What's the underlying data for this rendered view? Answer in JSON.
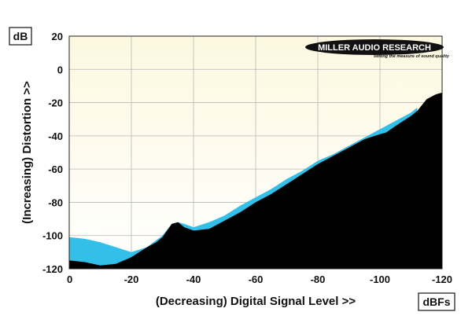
{
  "chart_data": {
    "type": "area",
    "xlabel": "(Decreasing) Digital Signal Level >>",
    "ylabel": "(Increasing) Distortion >>",
    "x_unit": "dBFs",
    "y_unit": "dB",
    "xlim": [
      0,
      -120
    ],
    "ylim": [
      -120,
      20
    ],
    "x_ticks": [
      0,
      -20,
      -40,
      -60,
      -80,
      -100,
      -120
    ],
    "x_tick_labels": [
      "0",
      "-20",
      "-40",
      "-60",
      "-80",
      "-100",
      "-120"
    ],
    "y_ticks": [
      20,
      0,
      -20,
      -40,
      -60,
      -80,
      -100,
      -120
    ],
    "y_tick_labels": [
      "20",
      "0",
      "-20",
      "-40",
      "-60",
      "-80",
      "-100",
      "-120"
    ],
    "grid": true,
    "series": [
      {
        "color": "#33bfe8",
        "x": [
          0,
          -5,
          -10,
          -15,
          -20,
          -25,
          -30,
          -33,
          -35,
          -37,
          -40,
          -45,
          -50,
          -55,
          -60,
          -65,
          -70,
          -75,
          -80,
          -85,
          -90,
          -95,
          -100,
          -105,
          -110,
          -112
        ],
        "values": [
          -101,
          -102,
          -104,
          -107,
          -110,
          -107,
          -100,
          -93,
          -92,
          -93,
          -95,
          -92,
          -88,
          -82,
          -77,
          -72,
          -66,
          -61,
          -55,
          -51,
          -46,
          -41,
          -36,
          -31,
          -26,
          -23
        ]
      },
      {
        "color": "#000000",
        "x": [
          0,
          -5,
          -10,
          -15,
          -20,
          -25,
          -28,
          -30,
          -33,
          -35,
          -37,
          -40,
          -45,
          -50,
          -55,
          -60,
          -65,
          -70,
          -75,
          -80,
          -85,
          -90,
          -95,
          -100,
          -102,
          -105,
          -110,
          -112,
          -115,
          -118,
          -120
        ],
        "values": [
          -115,
          -116,
          -118,
          -117,
          -113,
          -107,
          -104,
          -101,
          -93,
          -92,
          -95,
          -97,
          -96,
          -91,
          -86,
          -80,
          -75,
          -69,
          -63,
          -57,
          -52,
          -47,
          -42,
          -39,
          -38,
          -34,
          -28,
          -25,
          -18,
          -15,
          -14
        ]
      }
    ]
  },
  "logo": {
    "brand": "MILLER AUDIO RESEARCH",
    "tagline": "setting the measure of sound quality"
  }
}
